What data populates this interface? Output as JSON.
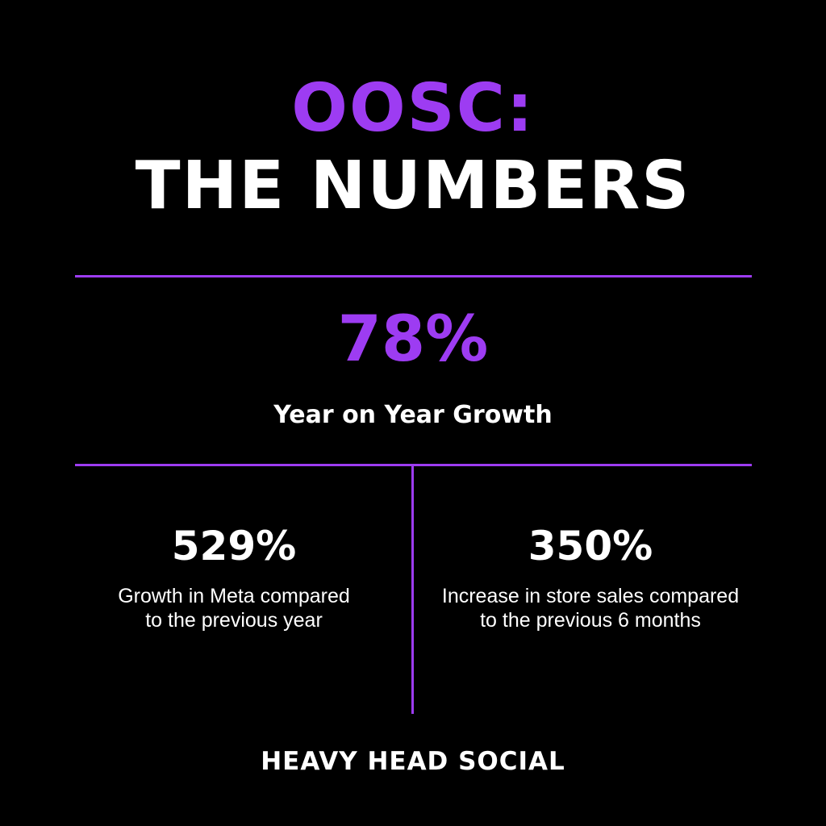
{
  "header": {
    "title_line_1": "OOSC:",
    "title_line_2": "THE NUMBERS"
  },
  "main_stat": {
    "value": "78%",
    "label": "Year on Year Growth"
  },
  "stats": [
    {
      "value": "529%",
      "caption_lines": [
        "Growth in Meta compared",
        "to the previous year"
      ]
    },
    {
      "value": "350%",
      "caption_lines": [
        "Increase in store sales compared",
        "to the previous 6 months"
      ]
    }
  ],
  "footer": {
    "brand": "HEAVY HEAD SOCIAL"
  }
}
